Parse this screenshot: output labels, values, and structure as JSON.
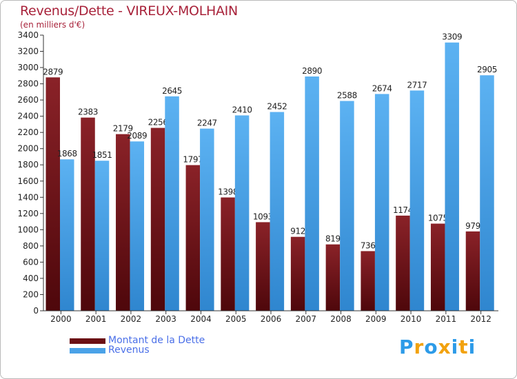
{
  "header": {
    "title": "Revenus/Dette - VIREUX-MOLHAIN",
    "subtitle": "(en milliers d'€)"
  },
  "chart_data": {
    "type": "bar",
    "title": "Revenus/Dette - VIREUX-MOLHAIN",
    "ylabel": "(en milliers d'€)",
    "xlabel": "",
    "categories": [
      "2000",
      "2001",
      "2002",
      "2003",
      "2004",
      "2005",
      "2006",
      "2007",
      "2008",
      "2009",
      "2010",
      "2011",
      "2012"
    ],
    "series": [
      {
        "name": "Montant de la Dette",
        "color": "#7a1a1f",
        "values": [
          2879,
          2383,
          2179,
          2256,
          1797,
          1398,
          1093,
          912,
          819,
          736,
          1174,
          1075,
          979
        ]
      },
      {
        "name": "Revenus",
        "color": "#4aa2e8",
        "values": [
          1868,
          1851,
          2089,
          2645,
          2247,
          2410,
          2452,
          2890,
          2588,
          2674,
          2717,
          3309,
          2905
        ]
      }
    ],
    "ylim": [
      0,
      3400
    ],
    "yticks": [
      0,
      200,
      400,
      600,
      800,
      1000,
      1200,
      1400,
      1600,
      1800,
      2000,
      2200,
      2400,
      2600,
      2800,
      3000,
      3200,
      3400
    ],
    "grid": false,
    "legend": "bottom-left"
  },
  "legend": {
    "items": [
      {
        "label": "Montant de la Dette",
        "color": "#6b0f14"
      },
      {
        "label": "Revenus",
        "color": "#4aa2e8"
      }
    ]
  },
  "logo": {
    "letters": [
      "P",
      "r",
      "o",
      "x",
      "i",
      "t",
      "i"
    ],
    "colors": [
      "#2d9be8",
      "#f2a20e",
      "#2d9be8",
      "#f2a20e",
      "#2d9be8",
      "#f2a20e",
      "#2d9be8"
    ]
  }
}
